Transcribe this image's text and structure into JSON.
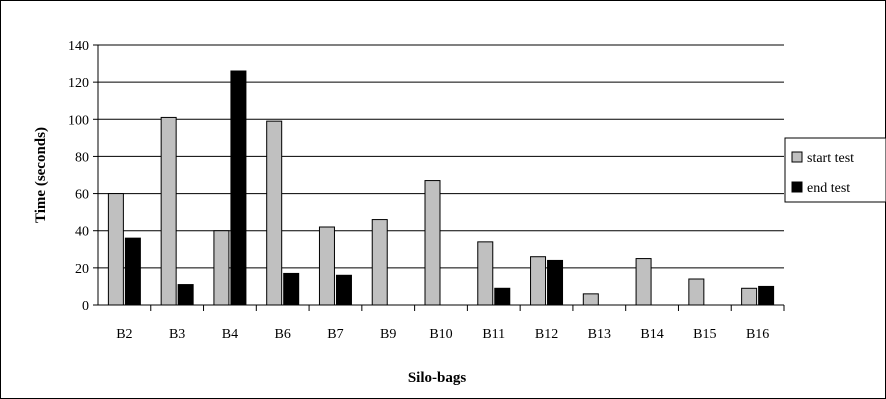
{
  "chart_data": {
    "type": "bar",
    "xlabel": "Silo-bags",
    "ylabel": "Time (seconds)",
    "ylim": [
      0,
      140
    ],
    "yticks": [
      0,
      20,
      40,
      60,
      80,
      100,
      120,
      140
    ],
    "grid": true,
    "legend_position": "right",
    "categories": [
      "B2",
      "B3",
      "B4",
      "B6",
      "B7",
      "B9",
      "B10",
      "B11",
      "B12",
      "B13",
      "B14",
      "B15",
      "B16"
    ],
    "series": [
      {
        "name": "start test",
        "color": "#c0c0c0",
        "values": [
          60,
          101,
          40,
          99,
          42,
          46,
          67,
          34,
          26,
          6,
          25,
          14,
          9
        ]
      },
      {
        "name": "end test",
        "color": "#000000",
        "values": [
          36,
          11,
          126,
          17,
          16,
          0,
          0,
          9,
          24,
          0,
          0,
          0,
          10
        ]
      }
    ]
  }
}
